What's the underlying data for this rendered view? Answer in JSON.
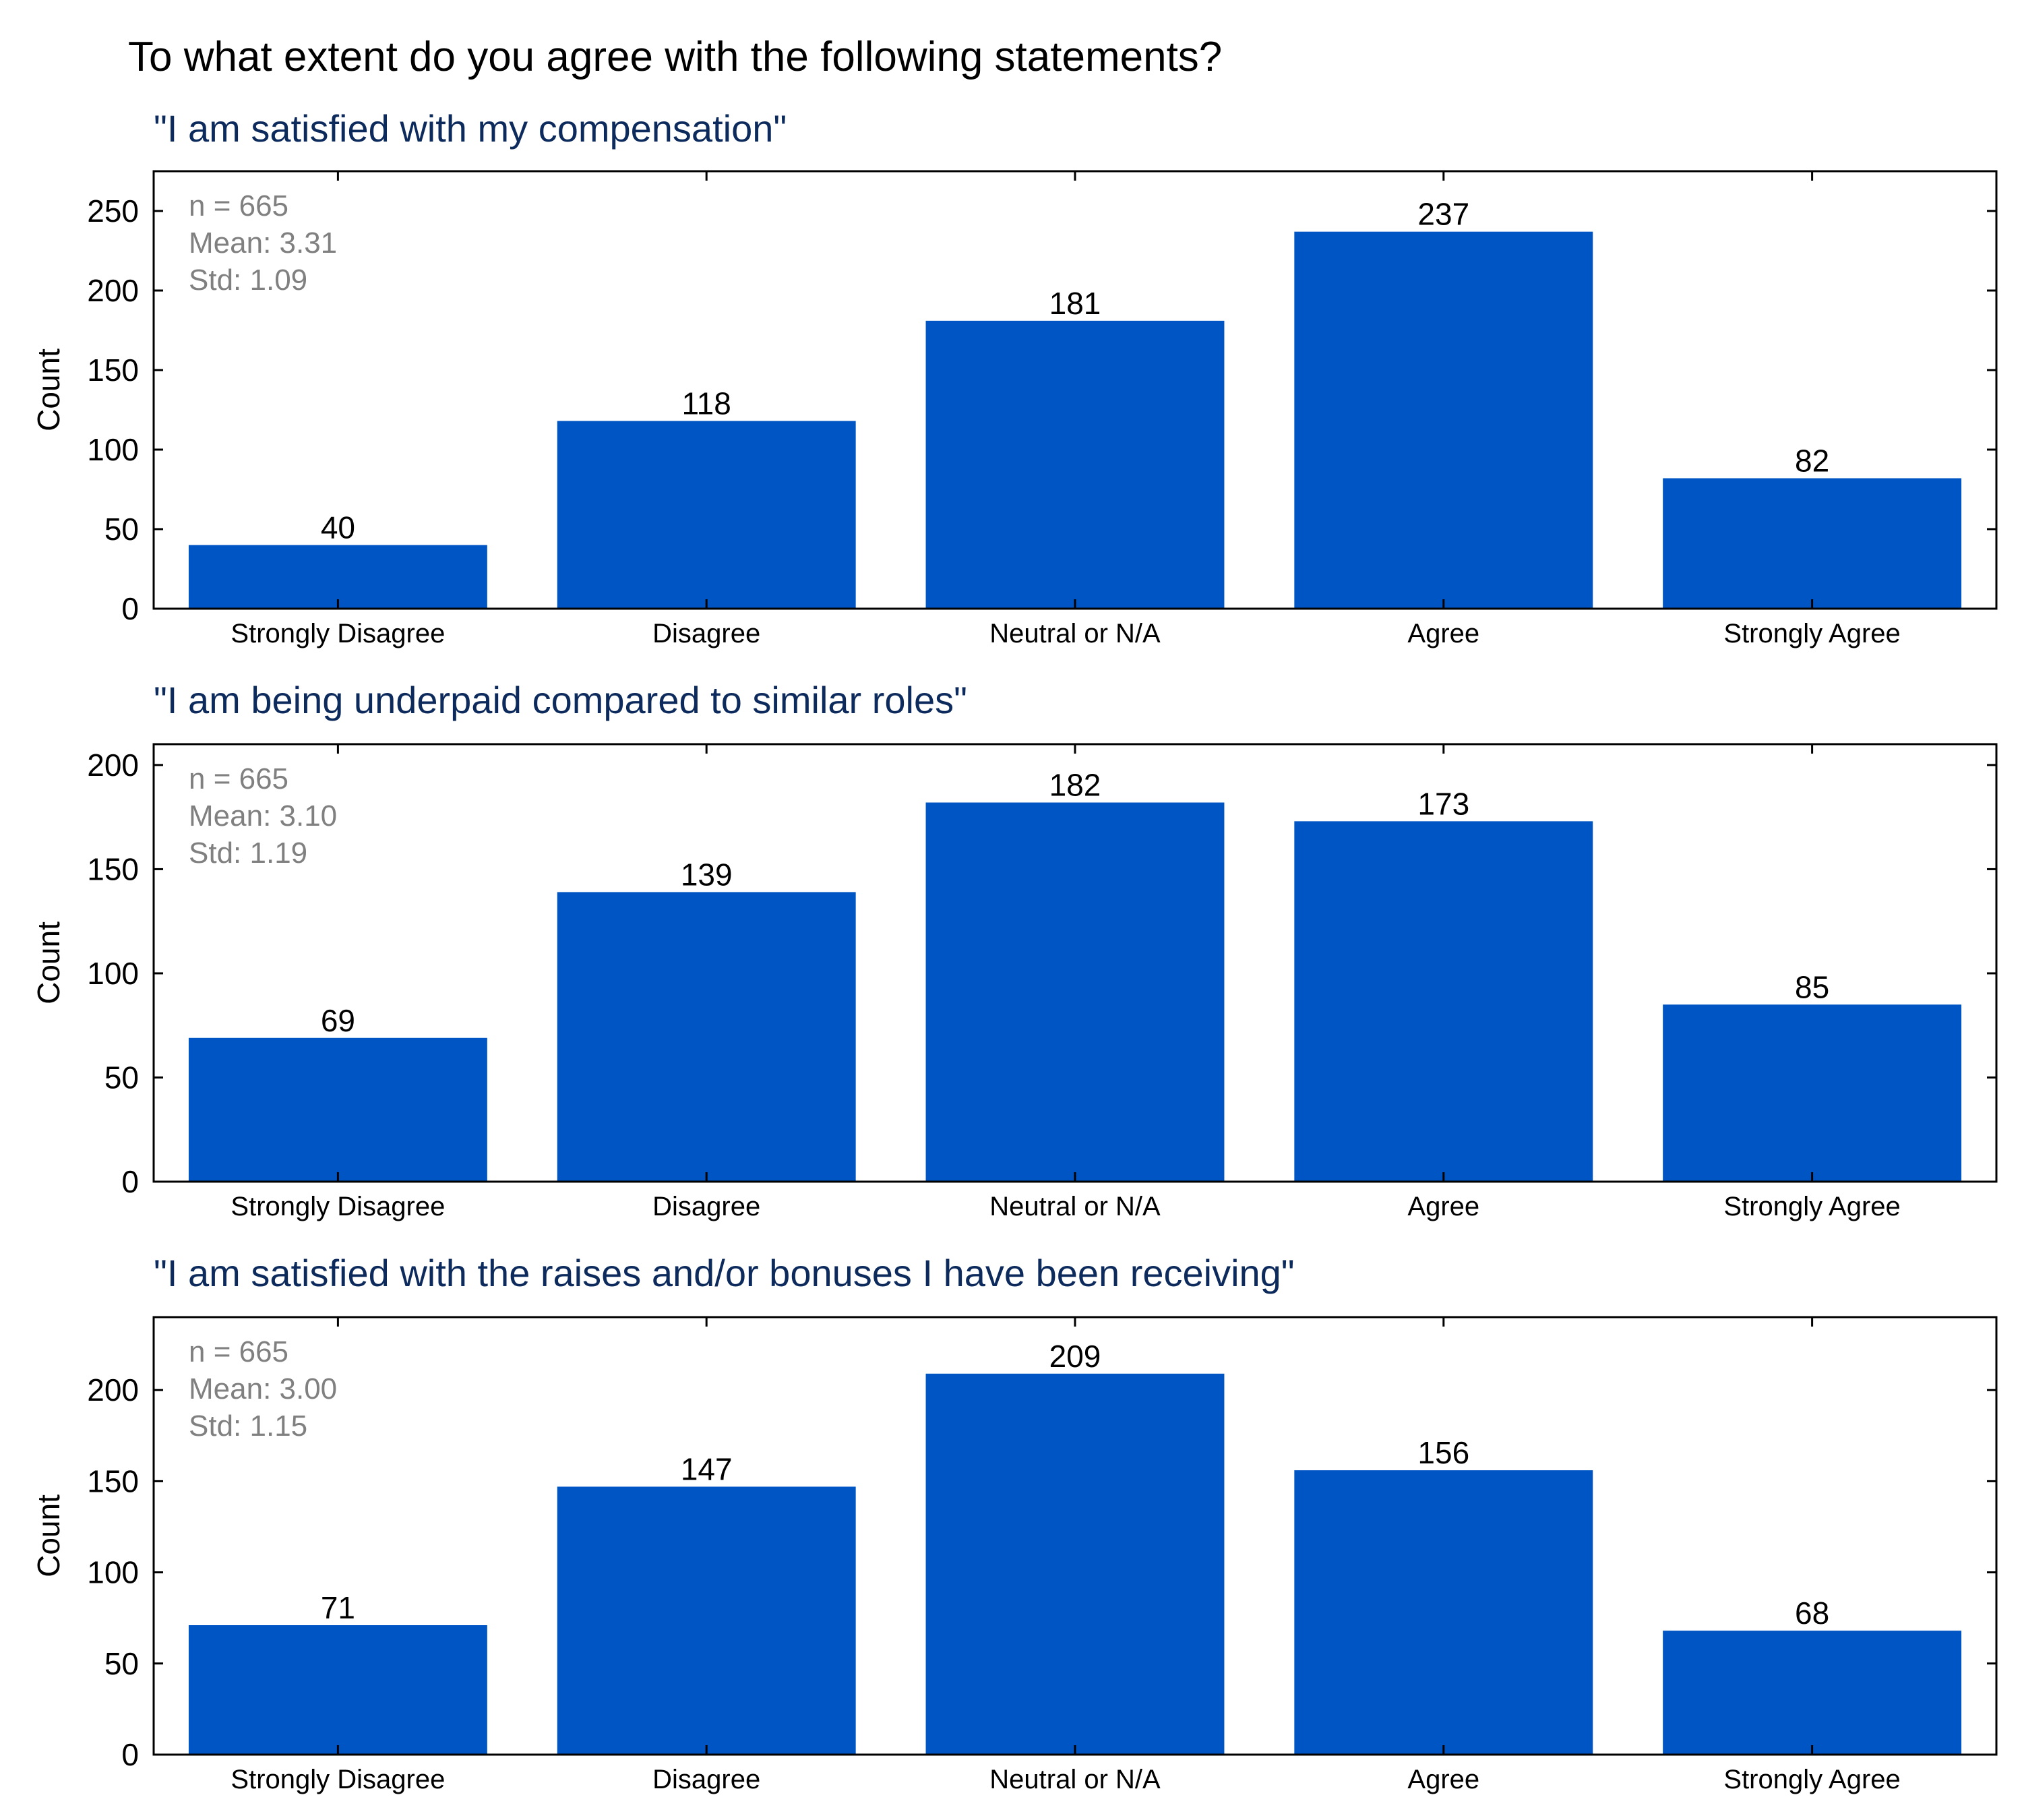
{
  "figure_title": "To what extent do you agree with the following statements?",
  "colors": {
    "bar": "#0055c4",
    "subtitle": "#0d2a5c",
    "stats": "#808080",
    "axis": "#000000"
  },
  "chart_data": [
    {
      "type": "bar",
      "title": "\"I am satisfied with my compensation\"",
      "categories": [
        "Strongly Disagree",
        "Disagree",
        "Neutral or N/A",
        "Agree",
        "Strongly Agree"
      ],
      "values": [
        40,
        118,
        181,
        237,
        82
      ],
      "ylabel": "Count",
      "ylim": [
        0,
        275
      ],
      "yticks": [
        0,
        50,
        100,
        150,
        200,
        250
      ],
      "stats": [
        "n = 665",
        "Mean: 3.31",
        "Std: 1.09"
      ],
      "grid": false
    },
    {
      "type": "bar",
      "title": "\"I am being underpaid compared to similar roles\"",
      "categories": [
        "Strongly Disagree",
        "Disagree",
        "Neutral or N/A",
        "Agree",
        "Strongly Agree"
      ],
      "values": [
        69,
        139,
        182,
        173,
        85
      ],
      "ylabel": "Count",
      "ylim": [
        0,
        210
      ],
      "yticks": [
        0,
        50,
        100,
        150,
        200
      ],
      "stats": [
        "n = 665",
        "Mean: 3.10",
        "Std: 1.19"
      ],
      "grid": false
    },
    {
      "type": "bar",
      "title": "\"I am satisfied with the raises and/or bonuses I have been receiving\"",
      "categories": [
        "Strongly Disagree",
        "Disagree",
        "Neutral or N/A",
        "Agree",
        "Strongly Agree"
      ],
      "values": [
        71,
        147,
        209,
        156,
        68
      ],
      "ylabel": "Count",
      "ylim": [
        0,
        240
      ],
      "yticks": [
        0,
        50,
        100,
        150,
        200
      ],
      "stats": [
        "n = 665",
        "Mean: 3.00",
        "Std: 1.15"
      ],
      "grid": false
    }
  ]
}
